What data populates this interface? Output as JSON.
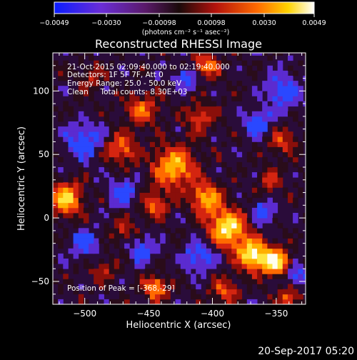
{
  "colorbar": {
    "ticks": [
      "−0.0049",
      "−0.0030",
      "−0.00098",
      "0.00098",
      "0.0030",
      "0.0049"
    ],
    "unit_label": "(photons cm⁻² s⁻¹ asec⁻²)",
    "colors": [
      "#0a1cff",
      "#6a2dd6",
      "#5a1a6a",
      "#1a0a0a",
      "#b3120c",
      "#ff6a00",
      "#ffd400",
      "#ffffff"
    ]
  },
  "title": "Reconstructed RHESSI Image",
  "annotations": {
    "time": "21-Oct-2015 02:09:40.000 to 02:19:40.000",
    "detectors": "Detectors: 1F 5F 7F, Att 0",
    "energy": "Energy Range: 25.0 - 50.0 keV",
    "clean": "Clean     Total counts: 8.30E+03",
    "peak": "Position of Peak = [-368,-29]"
  },
  "timestamp": "20-Sep-2017 05:20",
  "chart_data": {
    "type": "heatmap",
    "title": "Reconstructed RHESSI Image",
    "xlabel": "Heliocentric X (arcsec)",
    "ylabel": "Heliocentric Y (arcsec)",
    "xlim": [
      -525,
      -327
    ],
    "ylim": [
      -68,
      130
    ],
    "x_ticks": [
      -500,
      -450,
      -400,
      -350
    ],
    "y_ticks": [
      100,
      50,
      0,
      -50
    ],
    "x_tick_labels": [
      "−500",
      "−450",
      "−400",
      "−350"
    ],
    "y_tick_labels": [
      "100",
      "50",
      "0",
      "−50"
    ],
    "colorbar_range": [
      -0.0049,
      0.0049
    ],
    "peak": [
      -368,
      -29
    ],
    "grid": false
  }
}
